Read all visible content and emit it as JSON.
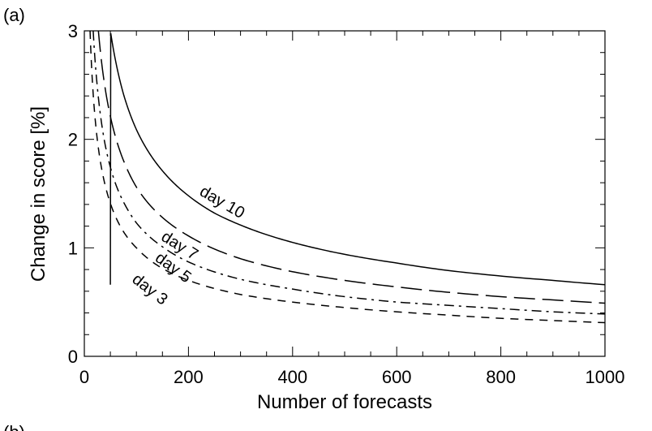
{
  "chart_data": {
    "type": "line",
    "panel_label": "(a)",
    "panel_label_next": "(b)",
    "title": "",
    "xlabel": "Number of forecasts",
    "ylabel": "Change in score [%]",
    "xlim": [
      0,
      1000
    ],
    "ylim": [
      0,
      3
    ],
    "xticks": [
      0,
      200,
      400,
      600,
      800,
      1000
    ],
    "yticks": [
      0,
      1,
      2,
      3
    ],
    "grid": false,
    "legend": "none (curves labelled inline)",
    "series": [
      {
        "name": "day 10",
        "style": "solid",
        "x": [
          50,
          75,
          100,
          150,
          200,
          250,
          300,
          400,
          500,
          600,
          700,
          800,
          900,
          1000
        ],
        "y": [
          3.0,
          2.42,
          2.09,
          1.71,
          1.48,
          1.32,
          1.21,
          1.05,
          0.94,
          0.86,
          0.79,
          0.74,
          0.7,
          0.66
        ]
      },
      {
        "name": "day 7",
        "style": "long-dash",
        "x": [
          27,
          40,
          60,
          80,
          100,
          150,
          200,
          300,
          400,
          500,
          600,
          700,
          800,
          900,
          1000
        ],
        "y": [
          3.0,
          2.47,
          2.02,
          1.75,
          1.56,
          1.28,
          1.11,
          0.9,
          0.78,
          0.7,
          0.64,
          0.59,
          0.55,
          0.52,
          0.49
        ]
      },
      {
        "name": "day 5",
        "style": "dash-dot",
        "x": [
          17,
          25,
          40,
          60,
          80,
          100,
          150,
          200,
          300,
          400,
          500,
          600,
          700,
          800,
          900,
          1000
        ],
        "y": [
          3.0,
          2.48,
          1.95,
          1.59,
          1.38,
          1.23,
          1.01,
          0.87,
          0.71,
          0.62,
          0.55,
          0.5,
          0.47,
          0.44,
          0.41,
          0.39
        ]
      },
      {
        "name": "day 3",
        "style": "dash",
        "x": [
          11,
          20,
          30,
          50,
          75,
          100,
          150,
          200,
          300,
          400,
          500,
          600,
          700,
          800,
          900,
          1000
        ],
        "y": [
          3.0,
          2.23,
          1.82,
          1.41,
          1.15,
          1.0,
          0.81,
          0.7,
          0.57,
          0.5,
          0.45,
          0.41,
          0.38,
          0.35,
          0.33,
          0.31
        ]
      }
    ],
    "curve_labels": [
      {
        "series": "day 10",
        "text": "day 10",
        "at": [
          260,
          1.38
        ],
        "angle_deg": 30
      },
      {
        "series": "day 7",
        "text": "day 7",
        "at": [
          178,
          0.98
        ],
        "angle_deg": 32
      },
      {
        "series": "day 5",
        "text": "day 5",
        "at": [
          165,
          0.78
        ],
        "angle_deg": 36
      },
      {
        "series": "day 3",
        "text": "day 3",
        "at": [
          120,
          0.58
        ],
        "angle_deg": 38
      }
    ]
  }
}
